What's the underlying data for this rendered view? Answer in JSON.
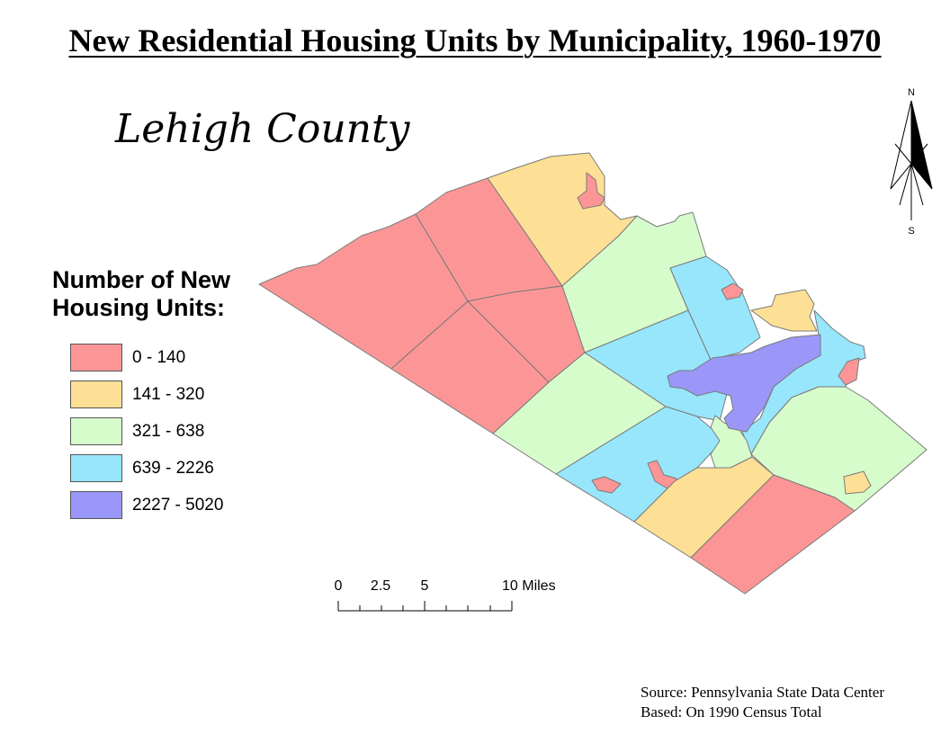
{
  "title": "New Residential Housing Units by Municipality, 1960-1970",
  "map_name": "Lehigh County",
  "legend": {
    "title_line1": "Number of New",
    "title_line2": "Housing Units:",
    "classes": [
      {
        "label": "0 - 140",
        "color": "#fc9696"
      },
      {
        "label": "141 - 320",
        "color": "#fddf95"
      },
      {
        "label": "321 - 638",
        "color": "#d7fccc"
      },
      {
        "label": "639 - 2226",
        "color": "#97e6fb"
      },
      {
        "label": "2227 - 5020",
        "color": "#9a97f9"
      }
    ]
  },
  "scale_bar": {
    "labels": [
      "0",
      "2.5",
      "5",
      "10 Miles"
    ]
  },
  "north_arrow": {
    "north": "N",
    "south": "S"
  },
  "source": {
    "line1": "Source: Pennsylvania State Data Center",
    "line2": "Based: On 1990 Census Total"
  }
}
